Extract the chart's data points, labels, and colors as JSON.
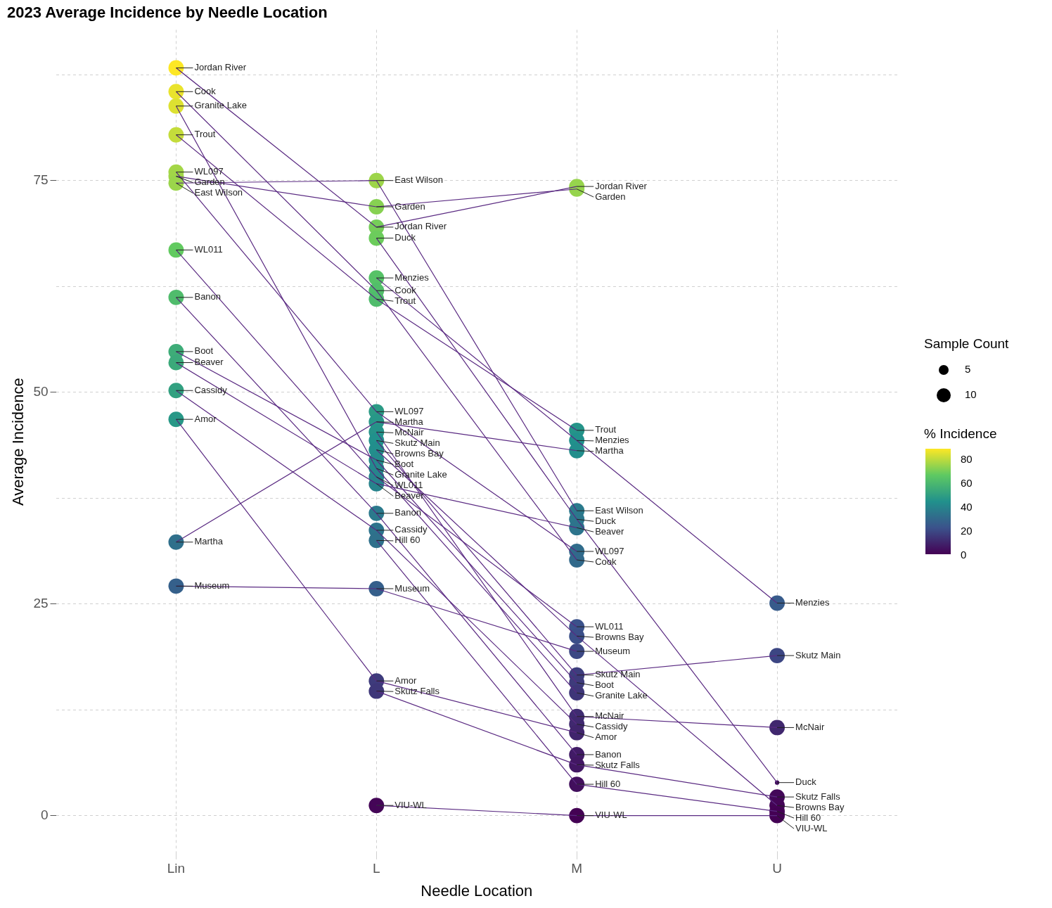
{
  "chart_data": {
    "type": "bubble",
    "title": "2023 Average Incidence by Needle Location",
    "xlabel": "Needle Location",
    "ylabel": "Average Incidence",
    "legend_title": "Sample Count",
    "clabel": "% Incidence",
    "categories": [
      "Lin",
      "L",
      "M",
      "U"
    ],
    "series": [
      {
        "name": "Jordan River",
        "values": [
          88.3,
          69.5,
          74.3,
          null
        ],
        "sizes": [
          12,
          12,
          12,
          null
        ],
        "colors": [
          "#fde725",
          "#76cd59",
          "#98d44c",
          null
        ]
      },
      {
        "name": "Cook",
        "values": [
          85.5,
          62,
          30.2,
          null
        ],
        "sizes": [
          12,
          12,
          12,
          null
        ],
        "colors": [
          "#e9e32d",
          "#52be6a",
          "#31698b",
          null
        ]
      },
      {
        "name": "Granite Lake",
        "values": [
          83.8,
          41,
          14.5,
          null
        ],
        "sizes": [
          12,
          12,
          12,
          null
        ],
        "colors": [
          "#dde131",
          "#24888c",
          "#3e3678",
          null
        ]
      },
      {
        "name": "Trout",
        "values": [
          80.4,
          61,
          45.5,
          null
        ],
        "sizes": [
          12,
          12,
          12,
          null
        ],
        "colors": [
          "#c4dc3b",
          "#50bc6c",
          "#259489",
          null
        ]
      },
      {
        "name": "WL097",
        "values": [
          76,
          47.7,
          31.2,
          null
        ],
        "sizes": [
          12,
          12,
          12,
          null
        ],
        "colors": [
          "#a4d647",
          "#2b9a85",
          "#306c8b",
          null
        ]
      },
      {
        "name": "Garden",
        "values": [
          75.5,
          71.9,
          74,
          null
        ],
        "sizes": [
          12,
          12,
          12,
          null
        ],
        "colors": [
          "#a1d648",
          "#87d152",
          "#96d44d",
          null
        ]
      },
      {
        "name": "East Wilson",
        "values": [
          74.7,
          75,
          36,
          null
        ],
        "sizes": [
          12,
          12,
          12,
          null
        ],
        "colors": [
          "#9bd54b",
          "#9dd54a",
          "#2a7a8c",
          null
        ]
      },
      {
        "name": "WL011",
        "values": [
          66.8,
          40,
          22.3,
          null
        ],
        "sizes": [
          12,
          12,
          12,
          null
        ],
        "colors": [
          "#62ca60",
          "#26858c",
          "#3b528b",
          null
        ]
      },
      {
        "name": "Banon",
        "values": [
          61.2,
          35.7,
          7.2,
          null
        ],
        "sizes": [
          12,
          12,
          12,
          null
        ],
        "colors": [
          "#50bc6c",
          "#2b798c",
          "#411b66",
          null
        ]
      },
      {
        "name": "Boot",
        "values": [
          54.8,
          42,
          15.7,
          null
        ],
        "sizes": [
          12,
          12,
          12,
          null
        ],
        "colors": [
          "#3eac78",
          "#248b8c",
          "#3e3b7b",
          null
        ]
      },
      {
        "name": "Beaver",
        "values": [
          53.5,
          39.2,
          34,
          null
        ],
        "sizes": [
          12,
          12,
          12,
          null
        ],
        "colors": [
          "#3ba97a",
          "#27838c",
          "#2d748c",
          null
        ]
      },
      {
        "name": "Cassidy",
        "values": [
          50.2,
          33.7,
          10.8,
          null
        ],
        "sizes": [
          12,
          12,
          12,
          null
        ],
        "colors": [
          "#32a080",
          "#2d738c",
          "#40296f",
          null
        ]
      },
      {
        "name": "Amor",
        "values": [
          46.8,
          15.9,
          9.8,
          null
        ],
        "sizes": [
          12,
          12,
          12,
          null
        ],
        "colors": [
          "#289887",
          "#3e3b7c",
          "#40256c",
          null
        ]
      },
      {
        "name": "Martha",
        "values": [
          32.3,
          46.5,
          43.1,
          null
        ],
        "sizes": [
          12,
          12,
          12,
          null
        ],
        "colors": [
          "#2f6f8b",
          "#279788",
          "#228e8c",
          null
        ]
      },
      {
        "name": "Museum",
        "values": [
          27.1,
          26.8,
          19.4,
          null
        ],
        "sizes": [
          12,
          12,
          12,
          null
        ],
        "colors": [
          "#35608b",
          "#355f8b",
          "#3c4884",
          null
        ]
      },
      {
        "name": "Duck",
        "values": [
          null,
          68.2,
          35,
          3.9
        ],
        "sizes": [
          null,
          12,
          12,
          1
        ],
        "colors": [
          null,
          "#6ccc5c",
          "#2c778c",
          "#420f5e"
        ]
      },
      {
        "name": "Menzies",
        "values": [
          null,
          63.5,
          44.3,
          25.1
        ],
        "sizes": [
          null,
          12,
          12,
          12
        ],
        "colors": [
          null,
          "#56c267",
          "#21918c",
          "#375b8b"
        ]
      },
      {
        "name": "McNair",
        "values": [
          null,
          45.3,
          11.7,
          10.4
        ],
        "sizes": [
          null,
          12,
          12,
          12
        ],
        "colors": [
          null,
          "#259389",
          "#3f2c71",
          "#40276e"
        ]
      },
      {
        "name": "Skutz Main",
        "values": [
          null,
          44.3,
          16.6,
          18.9
        ],
        "sizes": [
          null,
          12,
          12,
          12
        ],
        "colors": [
          null,
          "#21918c",
          "#3d3e7d",
          "#3c4683"
        ]
      },
      {
        "name": "Browns Bay",
        "values": [
          null,
          43.2,
          21.2,
          1.2
        ],
        "sizes": [
          null,
          12,
          12,
          12
        ],
        "colors": [
          null,
          "#228e8c",
          "#3b4f89",
          "#440557"
        ]
      },
      {
        "name": "Hill 60",
        "values": [
          null,
          32.5,
          3.7,
          0.5
        ],
        "sizes": [
          null,
          12,
          12,
          12
        ],
        "colors": [
          null,
          "#2f708b",
          "#420f5d",
          "#440255"
        ]
      },
      {
        "name": "Skutz Falls",
        "values": [
          null,
          14.7,
          6,
          2.2
        ],
        "sizes": [
          null,
          12,
          12,
          12
        ],
        "colors": [
          null,
          "#3e3779",
          "#421763",
          "#430859"
        ]
      },
      {
        "name": "VIU-WL",
        "values": [
          null,
          1.2,
          0,
          0
        ],
        "sizes": [
          null,
          12,
          12,
          12
        ],
        "colors": [
          null,
          "#440557",
          "#440154",
          "#440154"
        ]
      },
      {
        "type": "line",
        "color": "#5a2a82",
        "values": [
          88.3,
          69.5,
          74.3,
          null
        ]
      },
      {
        "type": "line",
        "color": "#5a2a82",
        "values": [
          85.5,
          62,
          30.2,
          null
        ]
      },
      {
        "type": "line",
        "color": "#5a2a82",
        "values": [
          83.8,
          41,
          14.5,
          null
        ]
      },
      {
        "type": "line",
        "color": "#5a2a82",
        "values": [
          80.4,
          61,
          45.5,
          null
        ]
      },
      {
        "type": "line",
        "color": "#5a2a82",
        "values": [
          76,
          47.7,
          31.2,
          null
        ]
      },
      {
        "type": "line",
        "color": "#5a2a82",
        "values": [
          75.5,
          71.9,
          74,
          null
        ]
      },
      {
        "type": "line",
        "color": "#5a2a82",
        "values": [
          74.7,
          75,
          36,
          null
        ]
      },
      {
        "type": "line",
        "color": "#5a2a82",
        "values": [
          66.8,
          40,
          22.3,
          null
        ]
      },
      {
        "type": "line",
        "color": "#5a2a82",
        "values": [
          61.2,
          35.7,
          7.2,
          null
        ]
      },
      {
        "type": "line",
        "color": "#5a2a82",
        "values": [
          54.8,
          42,
          15.7,
          null
        ]
      },
      {
        "type": "line",
        "color": "#5a2a82",
        "values": [
          53.5,
          39.2,
          34,
          null
        ]
      },
      {
        "type": "line",
        "color": "#5a2a82",
        "values": [
          50.2,
          33.7,
          10.8,
          null
        ]
      },
      {
        "type": "line",
        "color": "#5a2a82",
        "values": [
          46.8,
          15.9,
          9.8,
          null
        ]
      },
      {
        "type": "line",
        "color": "#5a2a82",
        "values": [
          32.3,
          46.5,
          43.1,
          null
        ]
      },
      {
        "type": "line",
        "color": "#5a2a82",
        "values": [
          27.1,
          26.8,
          19.4,
          null
        ]
      },
      {
        "type": "line",
        "color": "#5a2a82",
        "values": [
          null,
          68.2,
          35,
          3.9
        ]
      },
      {
        "type": "line",
        "color": "#5a2a82",
        "values": [
          null,
          63.5,
          44.3,
          25.1
        ]
      },
      {
        "type": "line",
        "color": "#5a2a82",
        "values": [
          null,
          45.3,
          11.7,
          10.4
        ]
      },
      {
        "type": "line",
        "color": "#5a2a82",
        "values": [
          null,
          44.3,
          16.6,
          18.9
        ]
      },
      {
        "type": "line",
        "color": "#5a2a82",
        "values": [
          null,
          43.2,
          21.2,
          1.2
        ]
      },
      {
        "type": "line",
        "color": "#5a2a82",
        "values": [
          null,
          32.5,
          3.7,
          0.5
        ]
      },
      {
        "type": "line",
        "color": "#5a2a82",
        "values": [
          null,
          14.7,
          6,
          2.2
        ]
      },
      {
        "type": "line",
        "color": "#5a2a82",
        "values": [
          null,
          1.2,
          0,
          0
        ]
      }
    ],
    "ylim": [
      -4.5,
      92.8
    ],
    "yticks": [
      0,
      {
        "value": 12.5,
        "label": null
      },
      25,
      {
        "value": 37.5,
        "label": null
      },
      50,
      {
        "value": 62.5,
        "label": null
      },
      75,
      {
        "value": 87.5,
        "label": null
      }
    ],
    "clim": [
      0,
      88.3
    ],
    "cticks": [
      0,
      20,
      40,
      60,
      80
    ],
    "size_legend": [
      5,
      10
    ],
    "grid": true,
    "line_style": "solid"
  }
}
